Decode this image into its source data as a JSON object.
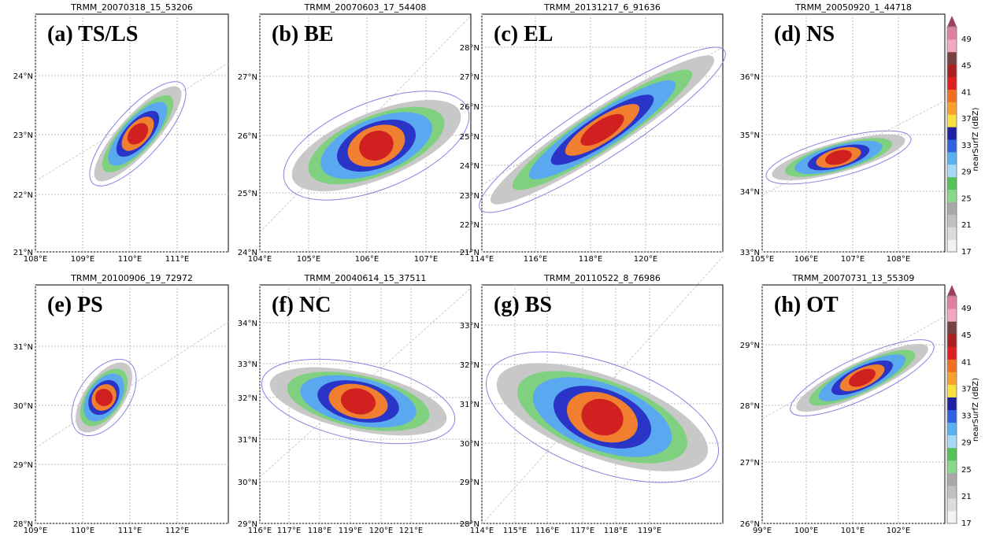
{
  "panels": [
    {
      "title": "TRMM_20070318_15_53206",
      "label": "(a) TS/LS",
      "xticks": [
        "108°E",
        "109°E",
        "110°E",
        "111°E"
      ],
      "yticks": [
        "21°N",
        "22°N",
        "23°N",
        "24°N"
      ]
    },
    {
      "title": "TRMM_20070603_17_54408",
      "label": "(b) BE",
      "xticks": [
        "104°E",
        "105°E",
        "106°E",
        "107°E"
      ],
      "yticks": [
        "24°N",
        "25°N",
        "26°N",
        "27°N"
      ]
    },
    {
      "title": "TRMM_20131217_6_91636",
      "label": "(c) EL",
      "xticks": [
        "114°E",
        "116°E",
        "118°E",
        "120°E"
      ],
      "yticks": [
        "21°N",
        "22°N",
        "23°N",
        "24°N",
        "25°N",
        "26°N",
        "27°N",
        "28°N"
      ]
    },
    {
      "title": "TRMM_20050920_1_44718",
      "label": "(d) NS",
      "xticks": [
        "105°E",
        "106°E",
        "107°E",
        "108°E"
      ],
      "yticks": [
        "33°N",
        "34°N",
        "35°N",
        "36°N"
      ]
    },
    {
      "title": "TRMM_20100906_19_72972",
      "label": "(e) PS",
      "xticks": [
        "109°E",
        "110°E",
        "111°E",
        "112°E"
      ],
      "yticks": [
        "28°N",
        "29°N",
        "30°N",
        "31°N"
      ]
    },
    {
      "title": "TRMM_20040614_15_37511",
      "label": "(f) NC",
      "xticks": [
        "116°E",
        "117°E",
        "118°E",
        "119°E",
        "120°E",
        "121°E"
      ],
      "yticks": [
        "29°N",
        "30°N",
        "31°N",
        "32°N",
        "33°N",
        "34°N"
      ]
    },
    {
      "title": "TRMM_20110522_8_76986",
      "label": "(g) BS",
      "xticks": [
        "114°E",
        "115°E",
        "116°E",
        "117°E",
        "118°E",
        "119°E"
      ],
      "yticks": [
        "28°N",
        "29°N",
        "30°N",
        "31°N",
        "32°N",
        "33°N"
      ]
    },
    {
      "title": "TRMM_20070731_13_55309",
      "label": "(h) OT",
      "xticks": [
        "99°E",
        "100°E",
        "101°E",
        "102°E"
      ],
      "yticks": [
        "26°N",
        "27°N",
        "28°N",
        "29°N"
      ]
    }
  ],
  "colorbar": {
    "label": "nearSurfZ (dBZ)",
    "ticks": [
      17,
      21,
      25,
      29,
      33,
      37,
      41,
      45,
      49
    ]
  }
}
